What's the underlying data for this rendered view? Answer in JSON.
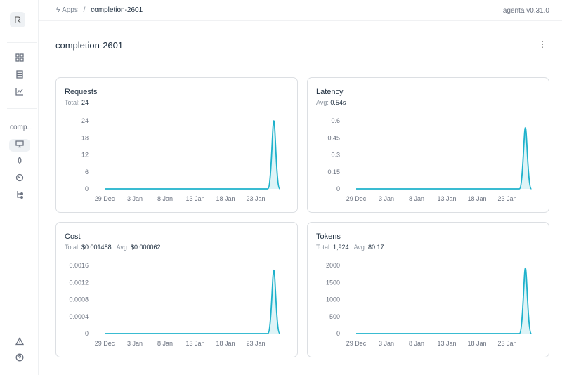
{
  "sidebar": {
    "logo": "R",
    "app_short": "comp...",
    "icons": [
      "grid-icon",
      "table-icon",
      "chart-icon",
      "monitor-icon",
      "rocket-icon",
      "gauge-icon",
      "flow-icon",
      "warning-icon",
      "help-icon"
    ]
  },
  "breadcrumb": {
    "root": "Apps",
    "separator": "/",
    "current": "completion-2601"
  },
  "version": "agenta v0.31.0",
  "page_title": "completion-2601",
  "accent": "#1fb2cc",
  "cards": [
    {
      "title": "Requests",
      "stats": [
        {
          "label": "Total:",
          "value": "24"
        }
      ]
    },
    {
      "title": "Latency",
      "stats": [
        {
          "label": "Avg:",
          "value": "0.54s"
        }
      ]
    },
    {
      "title": "Cost",
      "stats": [
        {
          "label": "Total:",
          "value": "$0.001488"
        },
        {
          "label": "Avg:",
          "value": "$0.000062"
        }
      ]
    },
    {
      "title": "Tokens",
      "stats": [
        {
          "label": "Total:",
          "value": "1,924"
        },
        {
          "label": "Avg:",
          "value": "80.17"
        }
      ]
    }
  ],
  "chart_data": [
    {
      "type": "area",
      "title": "Requests",
      "x": [
        "29 Dec",
        "30 Dec",
        "31 Dec",
        "1 Jan",
        "2 Jan",
        "3 Jan",
        "4 Jan",
        "5 Jan",
        "6 Jan",
        "7 Jan",
        "8 Jan",
        "9 Jan",
        "10 Jan",
        "11 Jan",
        "12 Jan",
        "13 Jan",
        "14 Jan",
        "15 Jan",
        "16 Jan",
        "17 Jan",
        "18 Jan",
        "19 Jan",
        "20 Jan",
        "21 Jan",
        "22 Jan",
        "23 Jan",
        "24 Jan",
        "25 Jan",
        "26 Jan",
        "27 Jan"
      ],
      "values": [
        0,
        0,
        0,
        0,
        0,
        0,
        0,
        0,
        0,
        0,
        0,
        0,
        0,
        0,
        0,
        0,
        0,
        0,
        0,
        0,
        0,
        0,
        0,
        0,
        0,
        0,
        0,
        0,
        24,
        0
      ],
      "xticks": [
        "29 Dec",
        "3 Jan",
        "8 Jan",
        "13 Jan",
        "18 Jan",
        "23 Jan"
      ],
      "yticks": [
        "0",
        "6",
        "12",
        "18",
        "24"
      ],
      "ylim": [
        0,
        24
      ],
      "grid": false
    },
    {
      "type": "area",
      "title": "Latency",
      "x": [
        "29 Dec",
        "30 Dec",
        "31 Dec",
        "1 Jan",
        "2 Jan",
        "3 Jan",
        "4 Jan",
        "5 Jan",
        "6 Jan",
        "7 Jan",
        "8 Jan",
        "9 Jan",
        "10 Jan",
        "11 Jan",
        "12 Jan",
        "13 Jan",
        "14 Jan",
        "15 Jan",
        "16 Jan",
        "17 Jan",
        "18 Jan",
        "19 Jan",
        "20 Jan",
        "21 Jan",
        "22 Jan",
        "23 Jan",
        "24 Jan",
        "25 Jan",
        "26 Jan",
        "27 Jan"
      ],
      "values": [
        0,
        0,
        0,
        0,
        0,
        0,
        0,
        0,
        0,
        0,
        0,
        0,
        0,
        0,
        0,
        0,
        0,
        0,
        0,
        0,
        0,
        0,
        0,
        0,
        0,
        0,
        0,
        0,
        0.54,
        0
      ],
      "xticks": [
        "29 Dec",
        "3 Jan",
        "8 Jan",
        "13 Jan",
        "18 Jan",
        "23 Jan"
      ],
      "yticks": [
        "0",
        "0.15",
        "0.3",
        "0.45",
        "0.6"
      ],
      "ylim": [
        0,
        0.6
      ],
      "grid": false
    },
    {
      "type": "area",
      "title": "Cost",
      "x": [
        "29 Dec",
        "30 Dec",
        "31 Dec",
        "1 Jan",
        "2 Jan",
        "3 Jan",
        "4 Jan",
        "5 Jan",
        "6 Jan",
        "7 Jan",
        "8 Jan",
        "9 Jan",
        "10 Jan",
        "11 Jan",
        "12 Jan",
        "13 Jan",
        "14 Jan",
        "15 Jan",
        "16 Jan",
        "17 Jan",
        "18 Jan",
        "19 Jan",
        "20 Jan",
        "21 Jan",
        "22 Jan",
        "23 Jan",
        "24 Jan",
        "25 Jan",
        "26 Jan",
        "27 Jan"
      ],
      "values": [
        0,
        0,
        0,
        0,
        0,
        0,
        0,
        0,
        0,
        0,
        0,
        0,
        0,
        0,
        0,
        0,
        0,
        0,
        0,
        0,
        0,
        0,
        0,
        0,
        0,
        0,
        0,
        0,
        0.001488,
        0
      ],
      "xticks": [
        "29 Dec",
        "3 Jan",
        "8 Jan",
        "13 Jan",
        "18 Jan",
        "23 Jan"
      ],
      "yticks": [
        "0",
        "0.0004",
        "0.0008",
        "0.0012",
        "0.0016"
      ],
      "ylim": [
        0,
        0.0016
      ],
      "grid": false
    },
    {
      "type": "area",
      "title": "Tokens",
      "x": [
        "29 Dec",
        "30 Dec",
        "31 Dec",
        "1 Jan",
        "2 Jan",
        "3 Jan",
        "4 Jan",
        "5 Jan",
        "6 Jan",
        "7 Jan",
        "8 Jan",
        "9 Jan",
        "10 Jan",
        "11 Jan",
        "12 Jan",
        "13 Jan",
        "14 Jan",
        "15 Jan",
        "16 Jan",
        "17 Jan",
        "18 Jan",
        "19 Jan",
        "20 Jan",
        "21 Jan",
        "22 Jan",
        "23 Jan",
        "24 Jan",
        "25 Jan",
        "26 Jan",
        "27 Jan"
      ],
      "values": [
        0,
        0,
        0,
        0,
        0,
        0,
        0,
        0,
        0,
        0,
        0,
        0,
        0,
        0,
        0,
        0,
        0,
        0,
        0,
        0,
        0,
        0,
        0,
        0,
        0,
        0,
        0,
        0,
        1924,
        0
      ],
      "xticks": [
        "29 Dec",
        "3 Jan",
        "8 Jan",
        "13 Jan",
        "18 Jan",
        "23 Jan"
      ],
      "yticks": [
        "0",
        "500",
        "1000",
        "1500",
        "2000"
      ],
      "ylim": [
        0,
        2000
      ],
      "grid": false
    }
  ]
}
